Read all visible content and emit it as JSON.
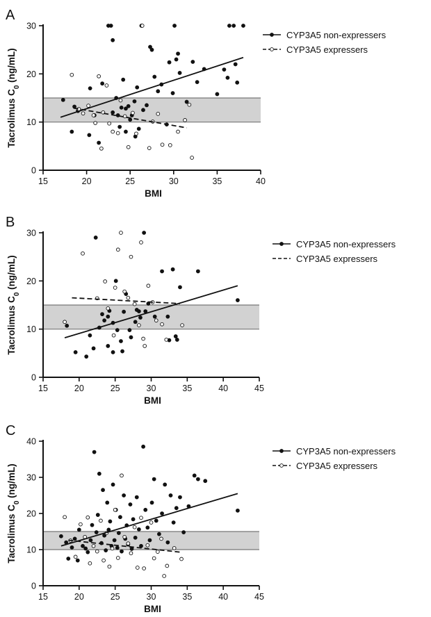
{
  "figure": {
    "colors": {
      "ink": "#111111",
      "band": "#d2d2d2",
      "band_edge": "#777777",
      "background": "#ffffff"
    }
  },
  "chart_data": [
    {
      "panel_letter": "A",
      "type": "scatter",
      "xlabel": "BMI",
      "ylabel": "Tacrolimus C0 (ng/mL)",
      "xlim": [
        15,
        40
      ],
      "ylim": [
        0,
        30
      ],
      "xticks": [
        15,
        20,
        25,
        30,
        35,
        40
      ],
      "yticks": [
        0,
        10,
        20,
        30
      ],
      "target_range": [
        10,
        15
      ],
      "grid": false,
      "legend_position": "right",
      "series": [
        {
          "name": "CYP3A5 non-expressers",
          "marker": "filled",
          "line_style": "solid",
          "fit": {
            "x": [
              17,
              38
            ],
            "y": [
              11,
              23.4
            ]
          },
          "points": [
            [
              17.3,
              14.6
            ],
            [
              18.3,
              8
            ],
            [
              18.6,
              13.2
            ],
            [
              19,
              12.3
            ],
            [
              20.3,
              7.3
            ],
            [
              20.4,
              17
            ],
            [
              20.9,
              11.4
            ],
            [
              21.4,
              5.7
            ],
            [
              21.8,
              18
            ],
            [
              22.5,
              30
            ],
            [
              22.8,
              30
            ],
            [
              23,
              27
            ],
            [
              23,
              12
            ],
            [
              23.4,
              15
            ],
            [
              23.6,
              11.4
            ],
            [
              23.8,
              9
            ],
            [
              24,
              13
            ],
            [
              24.2,
              18.8
            ],
            [
              24.5,
              12.8
            ],
            [
              24.5,
              8
            ],
            [
              24.8,
              13.3
            ],
            [
              25,
              10.5
            ],
            [
              25.2,
              11.4
            ],
            [
              25.5,
              14.3
            ],
            [
              25.6,
              7
            ],
            [
              25.8,
              17.2
            ],
            [
              26,
              8.6
            ],
            [
              26.3,
              30
            ],
            [
              26.5,
              12.5
            ],
            [
              26.9,
              13.5
            ],
            [
              27.3,
              25.6
            ],
            [
              27.5,
              25
            ],
            [
              27.8,
              19.4
            ],
            [
              28.2,
              16.4
            ],
            [
              28.6,
              17.8
            ],
            [
              29.2,
              9.5
            ],
            [
              29.5,
              22.4
            ],
            [
              29.9,
              16
            ],
            [
              30.1,
              30
            ],
            [
              30.3,
              23
            ],
            [
              30.5,
              24.2
            ],
            [
              30.7,
              20.2
            ],
            [
              31.5,
              14.2
            ],
            [
              32.2,
              22.5
            ],
            [
              32.7,
              18.3
            ],
            [
              33.5,
              21
            ],
            [
              35,
              15.8
            ],
            [
              35.8,
              20.9
            ],
            [
              36.2,
              19.2
            ],
            [
              36.4,
              30
            ],
            [
              36.9,
              30
            ],
            [
              37.1,
              22
            ],
            [
              37.3,
              18.2
            ],
            [
              38,
              30
            ]
          ]
        },
        {
          "name": "CYP3A5 expressers",
          "marker": "open",
          "line_style": "dashed",
          "fit": {
            "x": [
              18.5,
              31.5
            ],
            "y": [
              12.9,
              8.8
            ]
          },
          "points": [
            [
              18.3,
              19.8
            ],
            [
              19.1,
              12.7
            ],
            [
              19.6,
              11.8
            ],
            [
              20.2,
              13.4
            ],
            [
              20.8,
              11.4
            ],
            [
              21,
              9.8
            ],
            [
              21.4,
              19.5
            ],
            [
              21.7,
              4.5
            ],
            [
              21.9,
              12
            ],
            [
              22.3,
              17.6
            ],
            [
              22.6,
              9.7
            ],
            [
              23,
              8
            ],
            [
              23.6,
              7.7
            ],
            [
              23.9,
              14.5
            ],
            [
              24.4,
              11.2
            ],
            [
              24.8,
              4.8
            ],
            [
              25.3,
              11.9
            ],
            [
              25.7,
              7.6
            ],
            [
              26.4,
              30
            ],
            [
              27.2,
              4.6
            ],
            [
              27.6,
              10.1
            ],
            [
              28.2,
              11.7
            ],
            [
              28.7,
              5.3
            ],
            [
              29.6,
              5.2
            ],
            [
              30.5,
              8
            ],
            [
              31.3,
              10.4
            ],
            [
              31.8,
              13.6
            ],
            [
              32.1,
              2.6
            ]
          ]
        }
      ]
    },
    {
      "panel_letter": "B",
      "type": "scatter",
      "xlabel": "BMI",
      "ylabel": "Tacrolimus C0 (ng/mL)",
      "xlim": [
        15,
        45
      ],
      "ylim": [
        0,
        30
      ],
      "xticks": [
        15,
        20,
        25,
        30,
        35,
        40,
        45
      ],
      "yticks": [
        0,
        10,
        20,
        30
      ],
      "target_range": [
        10,
        15
      ],
      "grid": false,
      "legend_position": "right",
      "series": [
        {
          "name": "CYP3A5 non-expressers",
          "marker": "filled",
          "line_style": "solid",
          "fit": {
            "x": [
              18,
              42
            ],
            "y": [
              8.2,
              19
            ]
          },
          "points": [
            [
              18.3,
              10.7
            ],
            [
              19.5,
              5.2
            ],
            [
              21,
              4.3
            ],
            [
              21.5,
              8.7
            ],
            [
              22,
              6
            ],
            [
              22.3,
              29
            ],
            [
              22.8,
              10.3
            ],
            [
              23.2,
              13.1
            ],
            [
              23.5,
              11.8
            ],
            [
              24,
              12.6
            ],
            [
              24,
              6.5
            ],
            [
              24.2,
              13.8
            ],
            [
              24.7,
              11.3
            ],
            [
              24.7,
              5.2
            ],
            [
              25.1,
              20
            ],
            [
              25.3,
              9.8
            ],
            [
              25.8,
              7.5
            ],
            [
              26,
              5.4
            ],
            [
              26.2,
              13.6
            ],
            [
              26.5,
              17.3
            ],
            [
              27,
              9.8
            ],
            [
              27.2,
              8.3
            ],
            [
              27.8,
              11.5
            ],
            [
              28,
              14
            ],
            [
              28.3,
              13.7
            ],
            [
              28.5,
              12.4
            ],
            [
              29,
              30
            ],
            [
              29.2,
              13.7
            ],
            [
              29.6,
              15.3
            ],
            [
              30.5,
              12.6
            ],
            [
              31.5,
              22
            ],
            [
              32.3,
              12.6
            ],
            [
              32.5,
              7.7
            ],
            [
              33,
              22.4
            ],
            [
              33.4,
              8.5
            ],
            [
              33.6,
              7.8
            ],
            [
              34,
              18.7
            ],
            [
              36.5,
              22
            ],
            [
              42,
              16
            ]
          ]
        },
        {
          "name": "CYP3A5 expressers",
          "marker": "dashed-line",
          "line_style": "dashed",
          "fit": {
            "x": [
              19,
              34
            ],
            "y": [
              16.5,
              15.3
            ]
          },
          "points": [
            [
              18,
              11.5
            ],
            [
              20.5,
              25.7
            ],
            [
              22.5,
              16.4
            ],
            [
              23.6,
              19.9
            ],
            [
              24,
              14.3
            ],
            [
              24.8,
              8.7
            ],
            [
              25,
              18.6
            ],
            [
              25.4,
              26.5
            ],
            [
              25.8,
              30
            ],
            [
              26.3,
              17.8
            ],
            [
              26.8,
              16.5
            ],
            [
              27.2,
              25
            ],
            [
              27.7,
              15.2
            ],
            [
              28.3,
              10.8
            ],
            [
              28.6,
              28
            ],
            [
              28.9,
              8
            ],
            [
              29.1,
              6.5
            ],
            [
              29.6,
              19
            ],
            [
              30.2,
              15.6
            ],
            [
              30.7,
              11.8
            ],
            [
              31.5,
              11
            ],
            [
              32.1,
              7.8
            ],
            [
              34.3,
              10.8
            ]
          ]
        }
      ]
    },
    {
      "panel_letter": "C",
      "type": "scatter",
      "xlabel": "BMI",
      "ylabel": "Tacrolimus C0 (ng/mL)",
      "xlim": [
        15,
        45
      ],
      "ylim": [
        0,
        40
      ],
      "xticks": [
        15,
        20,
        25,
        30,
        35,
        40,
        45
      ],
      "yticks": [
        0,
        10,
        20,
        30,
        40
      ],
      "target_range": [
        10,
        15
      ],
      "grid": false,
      "legend_position": "right",
      "series": [
        {
          "name": "CYP3A5 non-expressers",
          "marker": "filled",
          "line_style": "solid",
          "fit": {
            "x": [
              17.5,
              42
            ],
            "y": [
              11,
              25.5
            ]
          },
          "points": [
            [
              17.5,
              13.7
            ],
            [
              18.2,
              12
            ],
            [
              18.5,
              7.5
            ],
            [
              19,
              10.6
            ],
            [
              19.4,
              13
            ],
            [
              19.8,
              7
            ],
            [
              20,
              15.5
            ],
            [
              20.5,
              11
            ],
            [
              20.9,
              10.3
            ],
            [
              21.2,
              9.3
            ],
            [
              21.6,
              12.6
            ],
            [
              21.8,
              16.8
            ],
            [
              22.1,
              37
            ],
            [
              22.4,
              14.8
            ],
            [
              22.6,
              19.6
            ],
            [
              22.8,
              31
            ],
            [
              23.1,
              11.8
            ],
            [
              23.3,
              26.5
            ],
            [
              23.5,
              13.9
            ],
            [
              23.7,
              9.8
            ],
            [
              23.9,
              23
            ],
            [
              24.1,
              15.5
            ],
            [
              24.3,
              17.8
            ],
            [
              24.5,
              11
            ],
            [
              24.7,
              28
            ],
            [
              24.9,
              12.6
            ],
            [
              25.1,
              21
            ],
            [
              25.3,
              10.5
            ],
            [
              25.5,
              14.6
            ],
            [
              25.7,
              19
            ],
            [
              25.9,
              9.5
            ],
            [
              26.2,
              25
            ],
            [
              26.4,
              13
            ],
            [
              26.6,
              16.7
            ],
            [
              26.8,
              11.4
            ],
            [
              27.1,
              22.5
            ],
            [
              27.3,
              10.2
            ],
            [
              27.5,
              18.4
            ],
            [
              27.8,
              13.3
            ],
            [
              28,
              24.5
            ],
            [
              28.3,
              15.6
            ],
            [
              28.6,
              11
            ],
            [
              28.9,
              38.5
            ],
            [
              29.2,
              21
            ],
            [
              29.5,
              16.1
            ],
            [
              29.8,
              12.6
            ],
            [
              30.1,
              23
            ],
            [
              30.4,
              29.5
            ],
            [
              30.7,
              18
            ],
            [
              31.1,
              14.3
            ],
            [
              31.5,
              20
            ],
            [
              31.9,
              28
            ],
            [
              32.3,
              12
            ],
            [
              32.7,
              25
            ],
            [
              33.1,
              17.5
            ],
            [
              33.5,
              21.5
            ],
            [
              34,
              24.5
            ],
            [
              34.5,
              14.8
            ],
            [
              35.2,
              22
            ],
            [
              36,
              30.5
            ],
            [
              36.5,
              29.5
            ],
            [
              37.5,
              29
            ],
            [
              42,
              20.8
            ]
          ]
        },
        {
          "name": "CYP3A5 expressers",
          "marker": "open",
          "line_style": "dashed",
          "fit": {
            "x": [
              18.5,
              34
            ],
            "y": [
              12.6,
              9.3
            ]
          },
          "points": [
            [
              18,
              19
            ],
            [
              18.8,
              12.5
            ],
            [
              19.5,
              8
            ],
            [
              20.2,
              17
            ],
            [
              20.8,
              13.5
            ],
            [
              21.2,
              18.9
            ],
            [
              21.5,
              6.2
            ],
            [
              22,
              11
            ],
            [
              22.5,
              9.5
            ],
            [
              23,
              18
            ],
            [
              23.4,
              7
            ],
            [
              23.8,
              14.6
            ],
            [
              24.2,
              5.3
            ],
            [
              24.6,
              10.3
            ],
            [
              25,
              21
            ],
            [
              25.4,
              7.7
            ],
            [
              25.9,
              30.5
            ],
            [
              26.3,
              13.5
            ],
            [
              26.8,
              11.7
            ],
            [
              27.2,
              9
            ],
            [
              27.7,
              16.2
            ],
            [
              28.1,
              5
            ],
            [
              28.6,
              18.8
            ],
            [
              29,
              4.8
            ],
            [
              29.5,
              11.2
            ],
            [
              30,
              17.5
            ],
            [
              30.4,
              7.6
            ],
            [
              30.9,
              9.4
            ],
            [
              31.4,
              13
            ],
            [
              31.8,
              2.7
            ],
            [
              32.2,
              5.5
            ],
            [
              33.2,
              10.4
            ],
            [
              34.2,
              7.4
            ]
          ]
        }
      ]
    }
  ]
}
